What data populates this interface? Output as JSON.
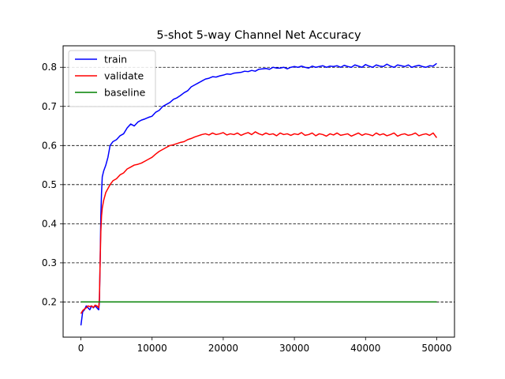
{
  "chart_data": {
    "type": "line",
    "title": "5-shot 5-way Channel Net Accuracy",
    "xlabel": "",
    "ylabel": "",
    "xlim": [
      -2500,
      52500
    ],
    "ylim": [
      0.11,
      0.855
    ],
    "xticks": [
      0,
      10000,
      20000,
      30000,
      40000,
      50000
    ],
    "yticks": [
      0.2,
      0.3,
      0.4,
      0.5,
      0.6,
      0.7,
      0.8
    ],
    "grid": {
      "axis": "y",
      "style": "dashed",
      "color": "#000000"
    },
    "legend": {
      "placement": "top-left",
      "entries": [
        "train",
        "validate",
        "baseline"
      ]
    },
    "series": [
      {
        "name": "train",
        "color": "#0000ff",
        "x": [
          0,
          250,
          500,
          750,
          1000,
          1250,
          1500,
          1750,
          2000,
          2250,
          2500,
          2600,
          2700,
          2800,
          2900,
          3000,
          3200,
          3500,
          3800,
          4100,
          4500,
          5000,
          5500,
          6000,
          6500,
          7000,
          7500,
          8000,
          8500,
          9000,
          9500,
          10000,
          10500,
          11000,
          11500,
          12000,
          12500,
          13000,
          13500,
          14000,
          14500,
          15000,
          15500,
          16000,
          16500,
          17000,
          17500,
          18000,
          18500,
          19000,
          19500,
          20000,
          20500,
          21000,
          21500,
          22000,
          22500,
          23000,
          23500,
          24000,
          24500,
          25000,
          25500,
          26000,
          26500,
          27000,
          27500,
          28000,
          28500,
          29000,
          29500,
          30000,
          30500,
          31000,
          31500,
          32000,
          32500,
          33000,
          33500,
          34000,
          34500,
          35000,
          35500,
          36000,
          36500,
          37000,
          37500,
          38000,
          38500,
          39000,
          39500,
          40000,
          40500,
          41000,
          41500,
          42000,
          42500,
          43000,
          43500,
          44000,
          44500,
          45000,
          45500,
          46000,
          46500,
          47000,
          47500,
          48000,
          48500,
          49000,
          49500,
          50000
        ],
        "y": [
          0.14,
          0.175,
          0.18,
          0.19,
          0.185,
          0.18,
          0.19,
          0.185,
          0.19,
          0.185,
          0.18,
          0.2,
          0.3,
          0.42,
          0.48,
          0.52,
          0.535,
          0.55,
          0.57,
          0.6,
          0.61,
          0.615,
          0.625,
          0.63,
          0.645,
          0.655,
          0.65,
          0.66,
          0.665,
          0.668,
          0.672,
          0.675,
          0.685,
          0.69,
          0.7,
          0.705,
          0.71,
          0.718,
          0.722,
          0.728,
          0.735,
          0.74,
          0.75,
          0.755,
          0.76,
          0.765,
          0.77,
          0.772,
          0.776,
          0.775,
          0.778,
          0.78,
          0.783,
          0.782,
          0.785,
          0.786,
          0.787,
          0.79,
          0.789,
          0.792,
          0.79,
          0.795,
          0.796,
          0.797,
          0.795,
          0.8,
          0.798,
          0.798,
          0.8,
          0.796,
          0.8,
          0.802,
          0.8,
          0.803,
          0.8,
          0.798,
          0.803,
          0.8,
          0.802,
          0.804,
          0.8,
          0.803,
          0.802,
          0.804,
          0.8,
          0.805,
          0.802,
          0.8,
          0.806,
          0.803,
          0.8,
          0.807,
          0.803,
          0.8,
          0.806,
          0.803,
          0.802,
          0.808,
          0.803,
          0.8,
          0.806,
          0.804,
          0.802,
          0.806,
          0.8,
          0.803,
          0.805,
          0.802,
          0.8,
          0.804,
          0.803,
          0.81
        ]
      },
      {
        "name": "validate",
        "color": "#ff0000",
        "x": [
          0,
          250,
          500,
          750,
          1000,
          1250,
          1500,
          1750,
          2000,
          2250,
          2500,
          2600,
          2700,
          2800,
          2900,
          3000,
          3200,
          3500,
          3800,
          4100,
          4500,
          5000,
          5500,
          6000,
          6500,
          7000,
          7500,
          8000,
          8500,
          9000,
          9500,
          10000,
          10500,
          11000,
          11500,
          12000,
          12500,
          13000,
          13500,
          14000,
          14500,
          15000,
          15500,
          16000,
          16500,
          17000,
          17500,
          18000,
          18500,
          19000,
          19500,
          20000,
          20500,
          21000,
          21500,
          22000,
          22500,
          23000,
          23500,
          24000,
          24500,
          25000,
          25500,
          26000,
          26500,
          27000,
          27500,
          28000,
          28500,
          29000,
          29500,
          30000,
          30500,
          31000,
          31500,
          32000,
          32500,
          33000,
          33500,
          34000,
          34500,
          35000,
          35500,
          36000,
          36500,
          37000,
          37500,
          38000,
          38500,
          39000,
          39500,
          40000,
          40500,
          41000,
          41500,
          42000,
          42500,
          43000,
          43500,
          44000,
          44500,
          45000,
          45500,
          46000,
          46500,
          47000,
          47500,
          48000,
          48500,
          49000,
          49500,
          50000
        ],
        "y": [
          0.17,
          0.178,
          0.182,
          0.185,
          0.19,
          0.188,
          0.19,
          0.186,
          0.192,
          0.19,
          0.185,
          0.21,
          0.3,
          0.38,
          0.42,
          0.44,
          0.46,
          0.48,
          0.49,
          0.5,
          0.51,
          0.515,
          0.525,
          0.53,
          0.54,
          0.545,
          0.55,
          0.552,
          0.555,
          0.56,
          0.565,
          0.57,
          0.578,
          0.585,
          0.59,
          0.595,
          0.6,
          0.602,
          0.605,
          0.608,
          0.61,
          0.615,
          0.618,
          0.622,
          0.625,
          0.628,
          0.63,
          0.627,
          0.632,
          0.628,
          0.63,
          0.633,
          0.627,
          0.63,
          0.628,
          0.632,
          0.626,
          0.63,
          0.633,
          0.628,
          0.635,
          0.63,
          0.627,
          0.632,
          0.628,
          0.63,
          0.625,
          0.632,
          0.628,
          0.63,
          0.626,
          0.63,
          0.628,
          0.633,
          0.626,
          0.628,
          0.632,
          0.625,
          0.63,
          0.628,
          0.624,
          0.63,
          0.627,
          0.632,
          0.626,
          0.628,
          0.63,
          0.624,
          0.628,
          0.632,
          0.626,
          0.63,
          0.628,
          0.625,
          0.632,
          0.627,
          0.63,
          0.625,
          0.628,
          0.632,
          0.624,
          0.628,
          0.63,
          0.626,
          0.628,
          0.632,
          0.625,
          0.628,
          0.63,
          0.626,
          0.632,
          0.62
        ]
      },
      {
        "name": "baseline",
        "color": "#008000",
        "x": [
          0,
          50000
        ],
        "y": [
          0.2,
          0.2
        ]
      }
    ]
  }
}
